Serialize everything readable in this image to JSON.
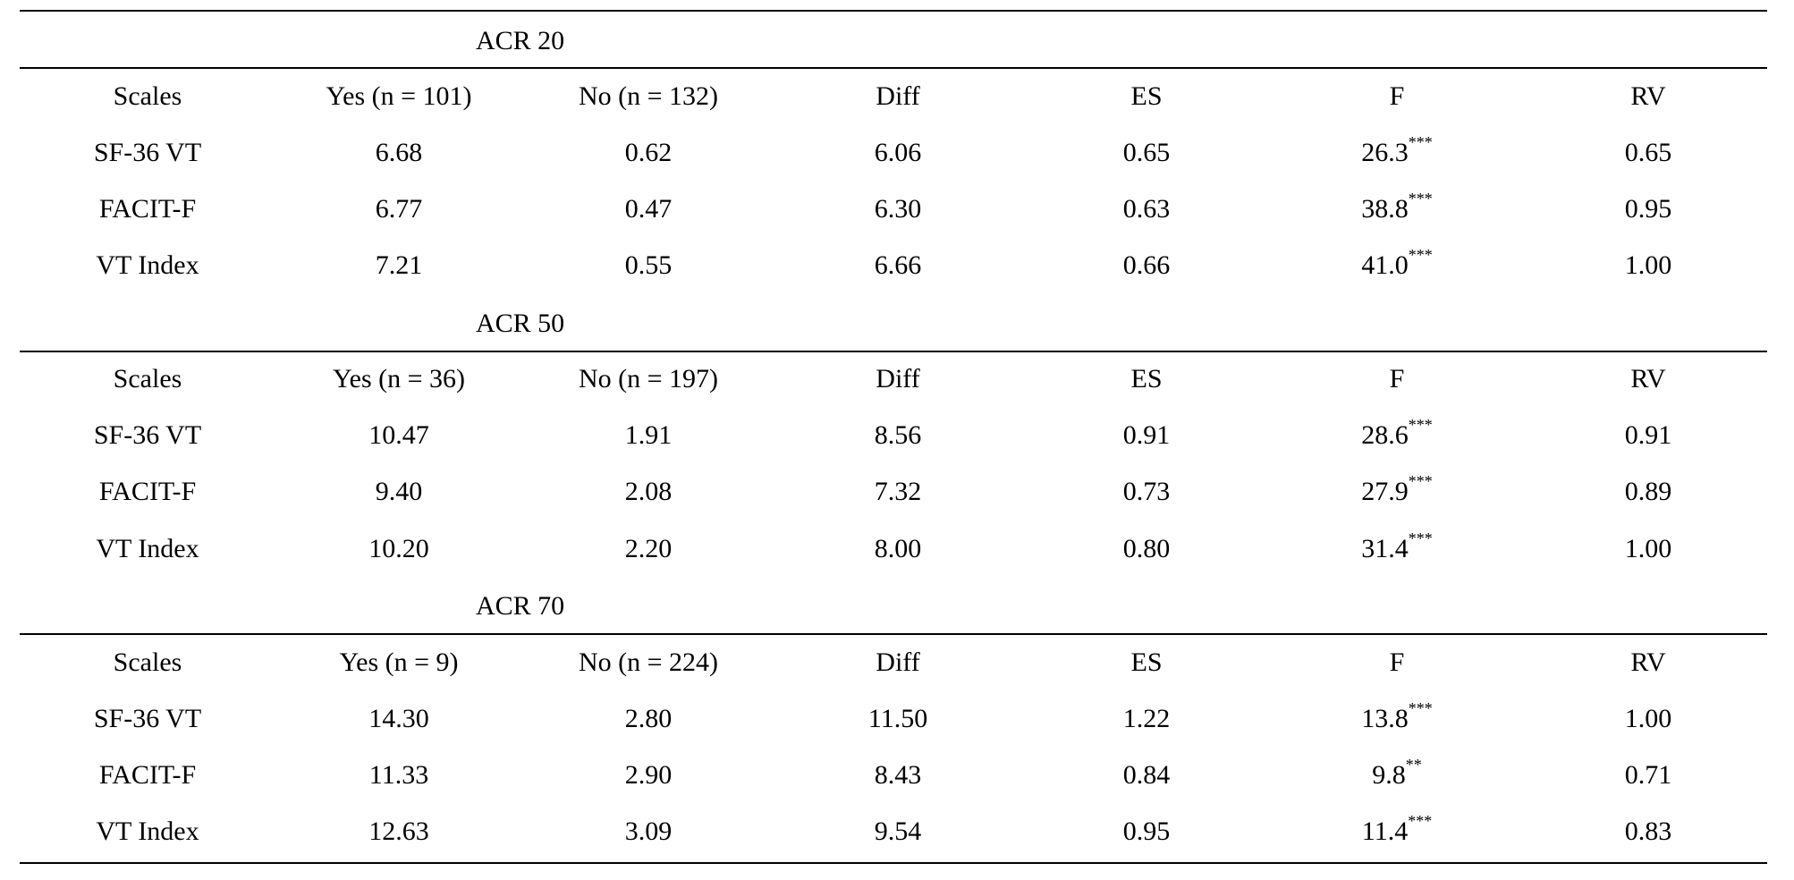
{
  "columns": [
    "Scales",
    "",
    "",
    "Diff",
    "ES",
    "F",
    "RV"
  ],
  "sections": [
    {
      "title": "ACR 20",
      "yes_header": "Yes (n = 101)",
      "no_header": "No (n = 132)",
      "rows": [
        {
          "scale": "SF-36 VT",
          "yes": "6.68",
          "no": "0.62",
          "diff": "6.06",
          "es": "0.65",
          "f": "26.3",
          "f_sig": "***",
          "rv": "0.65"
        },
        {
          "scale": "FACIT-F",
          "yes": "6.77",
          "no": "0.47",
          "diff": "6.30",
          "es": "0.63",
          "f": "38.8",
          "f_sig": "***",
          "rv": "0.95"
        },
        {
          "scale": "VT Index",
          "yes": "7.21",
          "no": "0.55",
          "diff": "6.66",
          "es": "0.66",
          "f": "41.0",
          "f_sig": "***",
          "rv": "1.00"
        }
      ]
    },
    {
      "title": "ACR 50",
      "yes_header": "Yes (n = 36)",
      "no_header": "No (n = 197)",
      "rows": [
        {
          "scale": "SF-36 VT",
          "yes": "10.47",
          "no": "1.91",
          "diff": "8.56",
          "es": "0.91",
          "f": "28.6",
          "f_sig": "***",
          "rv": "0.91"
        },
        {
          "scale": "FACIT-F",
          "yes": "9.40",
          "no": "2.08",
          "diff": "7.32",
          "es": "0.73",
          "f": "27.9",
          "f_sig": "***",
          "rv": "0.89"
        },
        {
          "scale": "VT Index",
          "yes": "10.20",
          "no": "2.20",
          "diff": "8.00",
          "es": "0.80",
          "f": "31.4",
          "f_sig": "***",
          "rv": "1.00"
        }
      ]
    },
    {
      "title": "ACR 70",
      "yes_header": "Yes (n = 9)",
      "no_header": "No (n = 224)",
      "rows": [
        {
          "scale": "SF-36 VT",
          "yes": "14.30",
          "no": "2.80",
          "diff": "11.50",
          "es": "1.22",
          "f": "13.8",
          "f_sig": "***",
          "rv": "1.00"
        },
        {
          "scale": "FACIT-F",
          "yes": "11.33",
          "no": "2.90",
          "diff": "8.43",
          "es": "0.84",
          "f": "9.8",
          "f_sig": "**",
          "rv": "0.71"
        },
        {
          "scale": "VT Index",
          "yes": "12.63",
          "no": "3.09",
          "diff": "9.54",
          "es": "0.95",
          "f": "11.4",
          "f_sig": "***",
          "rv": "0.83"
        }
      ]
    }
  ]
}
